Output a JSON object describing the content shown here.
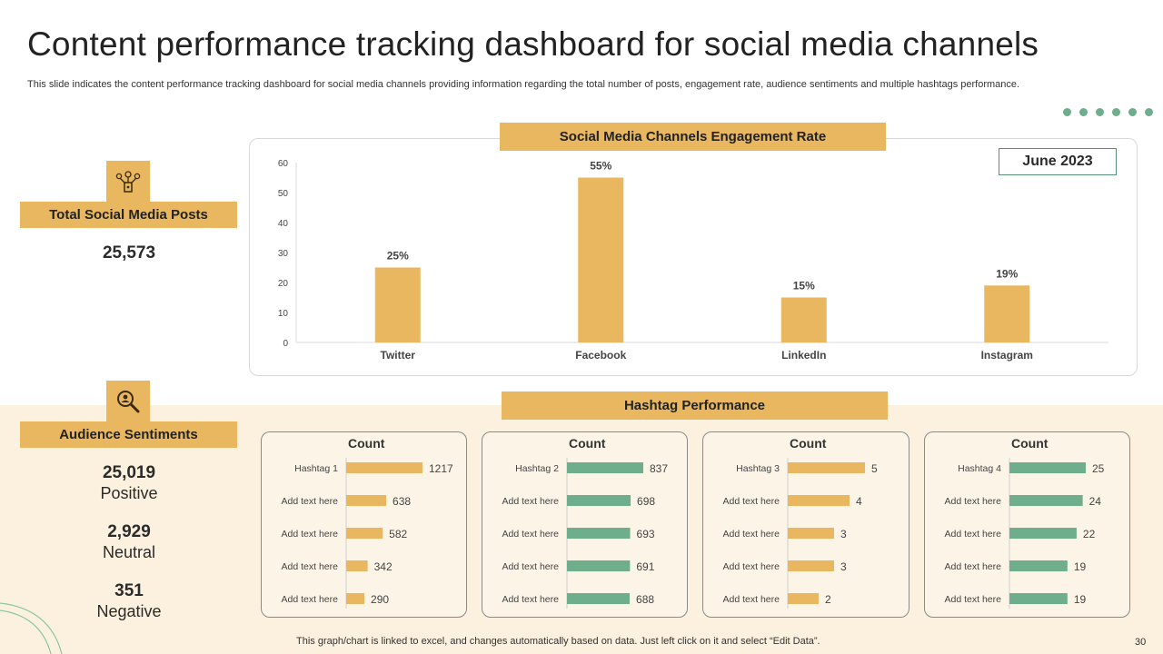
{
  "title": "Content performance tracking dashboard for social media channels",
  "subtitle": "This slide indicates the content performance tracking dashboard for social media channels providing information regarding the total number of posts, engagement rate, audience sentiments and multiple hashtags performance.",
  "colors": {
    "accent": "#e9b75f",
    "green": "#6fae8c",
    "band": "#fbf1de"
  },
  "posts": {
    "label": "Total Social Media Posts",
    "value": "25,573",
    "icon": "social-network-icon"
  },
  "sentiments": {
    "label": "Audience Sentiments",
    "icon": "search-analysis-icon",
    "positive": {
      "value": "25,019",
      "label": "Positive"
    },
    "neutral": {
      "value": "2,929",
      "label": "Neutral"
    },
    "negative": {
      "value": "351",
      "label": "Negative"
    }
  },
  "engagement": {
    "label": "Social Media Channels Engagement Rate",
    "month": "June 2023"
  },
  "hashtag_section": {
    "label": "Hashtag Performance"
  },
  "footer": "This graph/chart is linked to excel,  and changes automatically based on data. Just left click on it and select “Edit Data”.",
  "page_number": "30",
  "chart_data": [
    {
      "type": "bar",
      "title": "Social Media Channels Engagement Rate",
      "categories": [
        "Twitter",
        "Facebook",
        "LinkedIn",
        "Instagram"
      ],
      "values": [
        25,
        55,
        15,
        19
      ],
      "data_labels": [
        "25%",
        "55%",
        "15%",
        "19%"
      ],
      "ylim": [
        0,
        60
      ],
      "yticks": [
        0,
        10,
        20,
        30,
        40,
        50,
        60
      ],
      "xlabel": "",
      "ylabel": "",
      "grid": false
    },
    {
      "type": "bar",
      "orientation": "horizontal",
      "title": "Count",
      "color": "#e9b75f",
      "categories": [
        "Hashtag 1",
        "Add text here",
        "Add text here",
        "Add text here",
        "Add text here"
      ],
      "values": [
        1217,
        638,
        582,
        342,
        290
      ]
    },
    {
      "type": "bar",
      "orientation": "horizontal",
      "title": "Count",
      "color": "#6fae8c",
      "categories": [
        "Hashtag 2",
        "Add text here",
        "Add text here",
        "Add text here",
        "Add text here"
      ],
      "values": [
        837,
        698,
        693,
        691,
        688
      ]
    },
    {
      "type": "bar",
      "orientation": "horizontal",
      "title": "Count",
      "color": "#e9b75f",
      "categories": [
        "Hashtag 3",
        "Add text here",
        "Add text here",
        "Add text here",
        "Add text here"
      ],
      "values": [
        5,
        4,
        3,
        3,
        2
      ]
    },
    {
      "type": "bar",
      "orientation": "horizontal",
      "title": "Count",
      "color": "#6fae8c",
      "categories": [
        "Hashtag 4",
        "Add text here",
        "Add text here",
        "Add text here",
        "Add text here"
      ],
      "values": [
        25,
        24,
        22,
        19,
        19
      ]
    }
  ]
}
